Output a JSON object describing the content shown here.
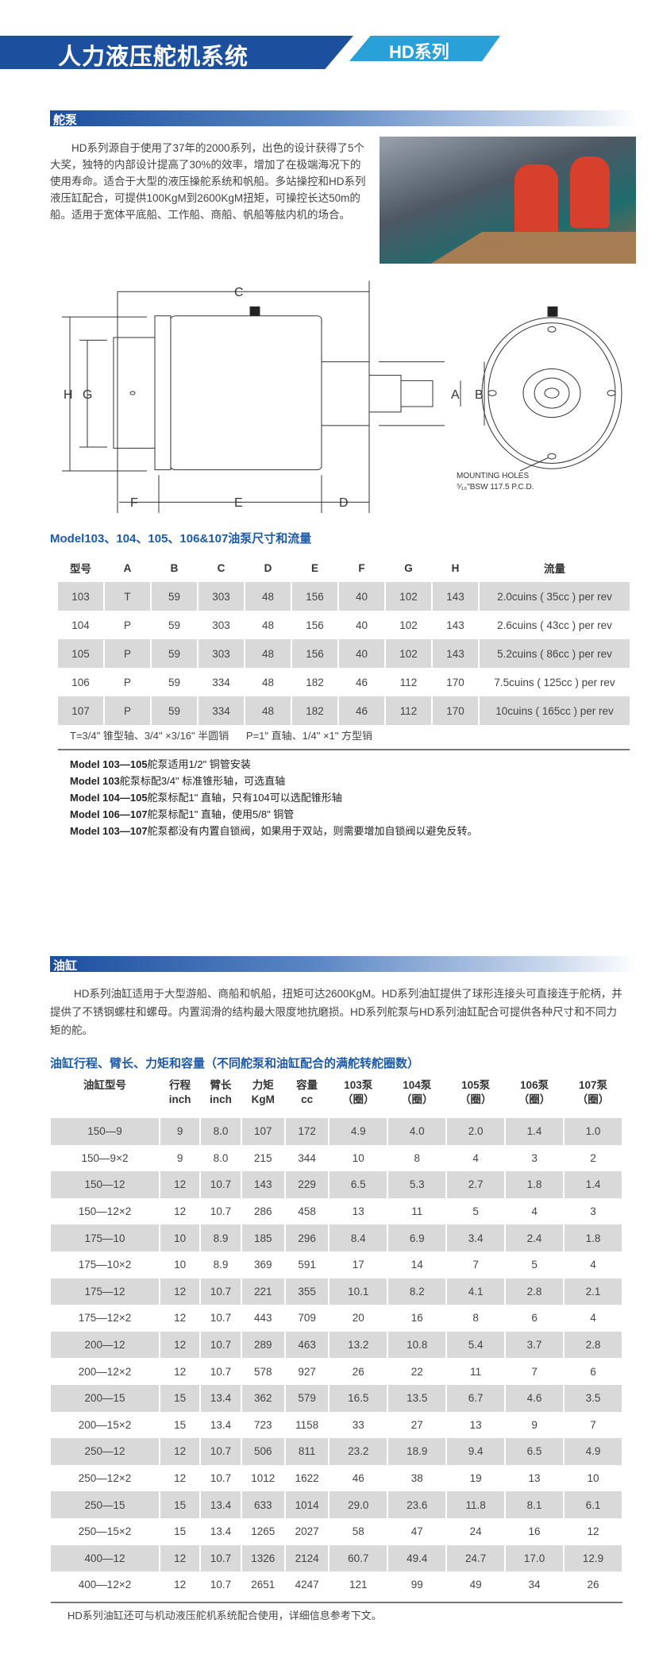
{
  "header": {
    "title": "人力液压舵机系统",
    "series": "HD系列"
  },
  "pump_section": {
    "title": "舵泵",
    "paragraph": "HD系列源自于使用了37年的2000系列，出色的设计获得了5个大奖，独特的内部设计提高了30%的效率，增加了在极端海况下的使用寿命。适合于大型的液压操舵系统和帆船。多站操控和HD系列液压缸配合，可提供100KgM到2600KgM扭矩，可操控长达50m的船。适用于宽体平底船、工作船、商船、帆船等舷内机的场合。",
    "diagram": {
      "labels": {
        "C": "C",
        "H": "H",
        "G": "G",
        "F": "F",
        "E": "E",
        "D": "D",
        "A": "A",
        "B": "B"
      },
      "note_line1": "MOUNTING HOLES",
      "note_line2": "⁵⁄₁₆\"BSW 117.5 P.C.D."
    },
    "table_title": "Model103、104、105、106&107油泵尺寸和流量",
    "table": {
      "headers": [
        "型号",
        "A",
        "B",
        "C",
        "D",
        "E",
        "F",
        "G",
        "H",
        "流量"
      ],
      "rows": [
        [
          "103",
          "T",
          "59",
          "303",
          "48",
          "156",
          "40",
          "102",
          "143",
          "2.0cuins ( 35cc ) per rev"
        ],
        [
          "104",
          "P",
          "59",
          "303",
          "48",
          "156",
          "40",
          "102",
          "143",
          "2.6cuins ( 43cc ) per rev"
        ],
        [
          "105",
          "P",
          "59",
          "303",
          "48",
          "156",
          "40",
          "102",
          "143",
          "5.2cuins ( 86cc ) per rev"
        ],
        [
          "106",
          "P",
          "59",
          "334",
          "48",
          "182",
          "46",
          "112",
          "170",
          "7.5cuins ( 125cc ) per rev"
        ],
        [
          "107",
          "P",
          "59",
          "334",
          "48",
          "182",
          "46",
          "112",
          "170",
          "10cuins ( 165cc ) per rev"
        ]
      ]
    },
    "legend": "T=3/4\" 锥型轴、3/4\" ×3/16\" 半圆销      P=1\" 直轴、1/4\" ×1\" 方型销",
    "notes": [
      {
        "model": "Model 103—105",
        "text": "舵泵适用1/2\" 铜管安装"
      },
      {
        "model": "Model 103",
        "text": "舵泵标配3/4\" 标准锥形轴，可选直轴"
      },
      {
        "model": "Model 104—105",
        "text": "舵泵标配1\" 直轴，只有104可以选配锥形轴"
      },
      {
        "model": "Model 106—107",
        "text": "舵泵标配1\" 直轴，使用5/8\" 铜管"
      },
      {
        "model": "Model 103—107",
        "text": "舵泵都没有内置自锁阀，如果用于双站，则需要增加自锁阀以避免反转。"
      }
    ]
  },
  "cylinder_section": {
    "title": "油缸",
    "paragraph": "HD系列油缸适用于大型游船、商船和帆船，扭矩可达2600KgM。HD系列油缸提供了球形连接头可直接连于舵柄，并提供了不锈钢螺柱和螺母。内置润滑的结构最大限度地抗磨损。HD系列舵泵与HD系列油缸配合可提供各种尺寸和不同力矩的舵。",
    "table_title": "油缸行程、臂长、力矩和容量（不同舵泵和油缸配合的满舵转舵圈数）",
    "table": {
      "headers": [
        [
          "油缸型号",
          ""
        ],
        [
          "行程",
          "inch"
        ],
        [
          "臂长",
          "inch"
        ],
        [
          "力矩",
          "KgM"
        ],
        [
          "容量",
          "cc"
        ],
        [
          "103泵",
          "（圈）"
        ],
        [
          "104泵",
          "（圈）"
        ],
        [
          "105泵",
          "（圈）"
        ],
        [
          "106泵",
          "（圈）"
        ],
        [
          "107泵",
          "（圈）"
        ]
      ],
      "rows": [
        [
          "150—9",
          "9",
          "8.0",
          "107",
          "172",
          "4.9",
          "4.0",
          "2.0",
          "1.4",
          "1.0"
        ],
        [
          "150—9×2",
          "9",
          "8.0",
          "215",
          "344",
          "10",
          "8",
          "4",
          "3",
          "2"
        ],
        [
          "150—12",
          "12",
          "10.7",
          "143",
          "229",
          "6.5",
          "5.3",
          "2.7",
          "1.8",
          "1.4"
        ],
        [
          "150—12×2",
          "12",
          "10.7",
          "286",
          "458",
          "13",
          "11",
          "5",
          "4",
          "3"
        ],
        [
          "175—10",
          "10",
          "8.9",
          "185",
          "296",
          "8.4",
          "6.9",
          "3.4",
          "2.4",
          "1.8"
        ],
        [
          "175—10×2",
          "10",
          "8.9",
          "369",
          "591",
          "17",
          "14",
          "7",
          "5",
          "4"
        ],
        [
          "175—12",
          "12",
          "10.7",
          "221",
          "355",
          "10.1",
          "8.2",
          "4.1",
          "2.8",
          "2.1"
        ],
        [
          "175—12×2",
          "12",
          "10.7",
          "443",
          "709",
          "20",
          "16",
          "8",
          "6",
          "4"
        ],
        [
          "200—12",
          "12",
          "10.7",
          "289",
          "463",
          "13.2",
          "10.8",
          "5.4",
          "3.7",
          "2.8"
        ],
        [
          "200—12×2",
          "12",
          "10.7",
          "578",
          "927",
          "26",
          "22",
          "11",
          "7",
          "6"
        ],
        [
          "200—15",
          "15",
          "13.4",
          "362",
          "579",
          "16.5",
          "13.5",
          "6.7",
          "4.6",
          "3.5"
        ],
        [
          "200—15×2",
          "15",
          "13.4",
          "723",
          "1158",
          "33",
          "27",
          "13",
          "9",
          "7"
        ],
        [
          "250—12",
          "12",
          "10.7",
          "506",
          "811",
          "23.2",
          "18.9",
          "9.4",
          "6.5",
          "4.9"
        ],
        [
          "250—12×2",
          "12",
          "10.7",
          "1012",
          "1622",
          "46",
          "38",
          "19",
          "13",
          "10"
        ],
        [
          "250—15",
          "15",
          "13.4",
          "633",
          "1014",
          "29.0",
          "23.6",
          "11.8",
          "8.1",
          "6.1"
        ],
        [
          "250—15×2",
          "15",
          "13.4",
          "1265",
          "2027",
          "58",
          "47",
          "24",
          "16",
          "12"
        ],
        [
          "400—12",
          "12",
          "10.7",
          "1326",
          "2124",
          "60.7",
          "49.4",
          "24.7",
          "17.0",
          "12.9"
        ],
        [
          "400—12×2",
          "12",
          "10.7",
          "2651",
          "4247",
          "121",
          "99",
          "49",
          "34",
          "26"
        ]
      ]
    },
    "footer": "HD系列油缸还可与机动液压舵机系统配合使用，详细信息参考下文。"
  },
  "colors": {
    "primary": "#1d4f9f",
    "accent": "#2aa0d8",
    "title_text": "#1d5aa8",
    "row_shade": "#d9d9d9"
  }
}
